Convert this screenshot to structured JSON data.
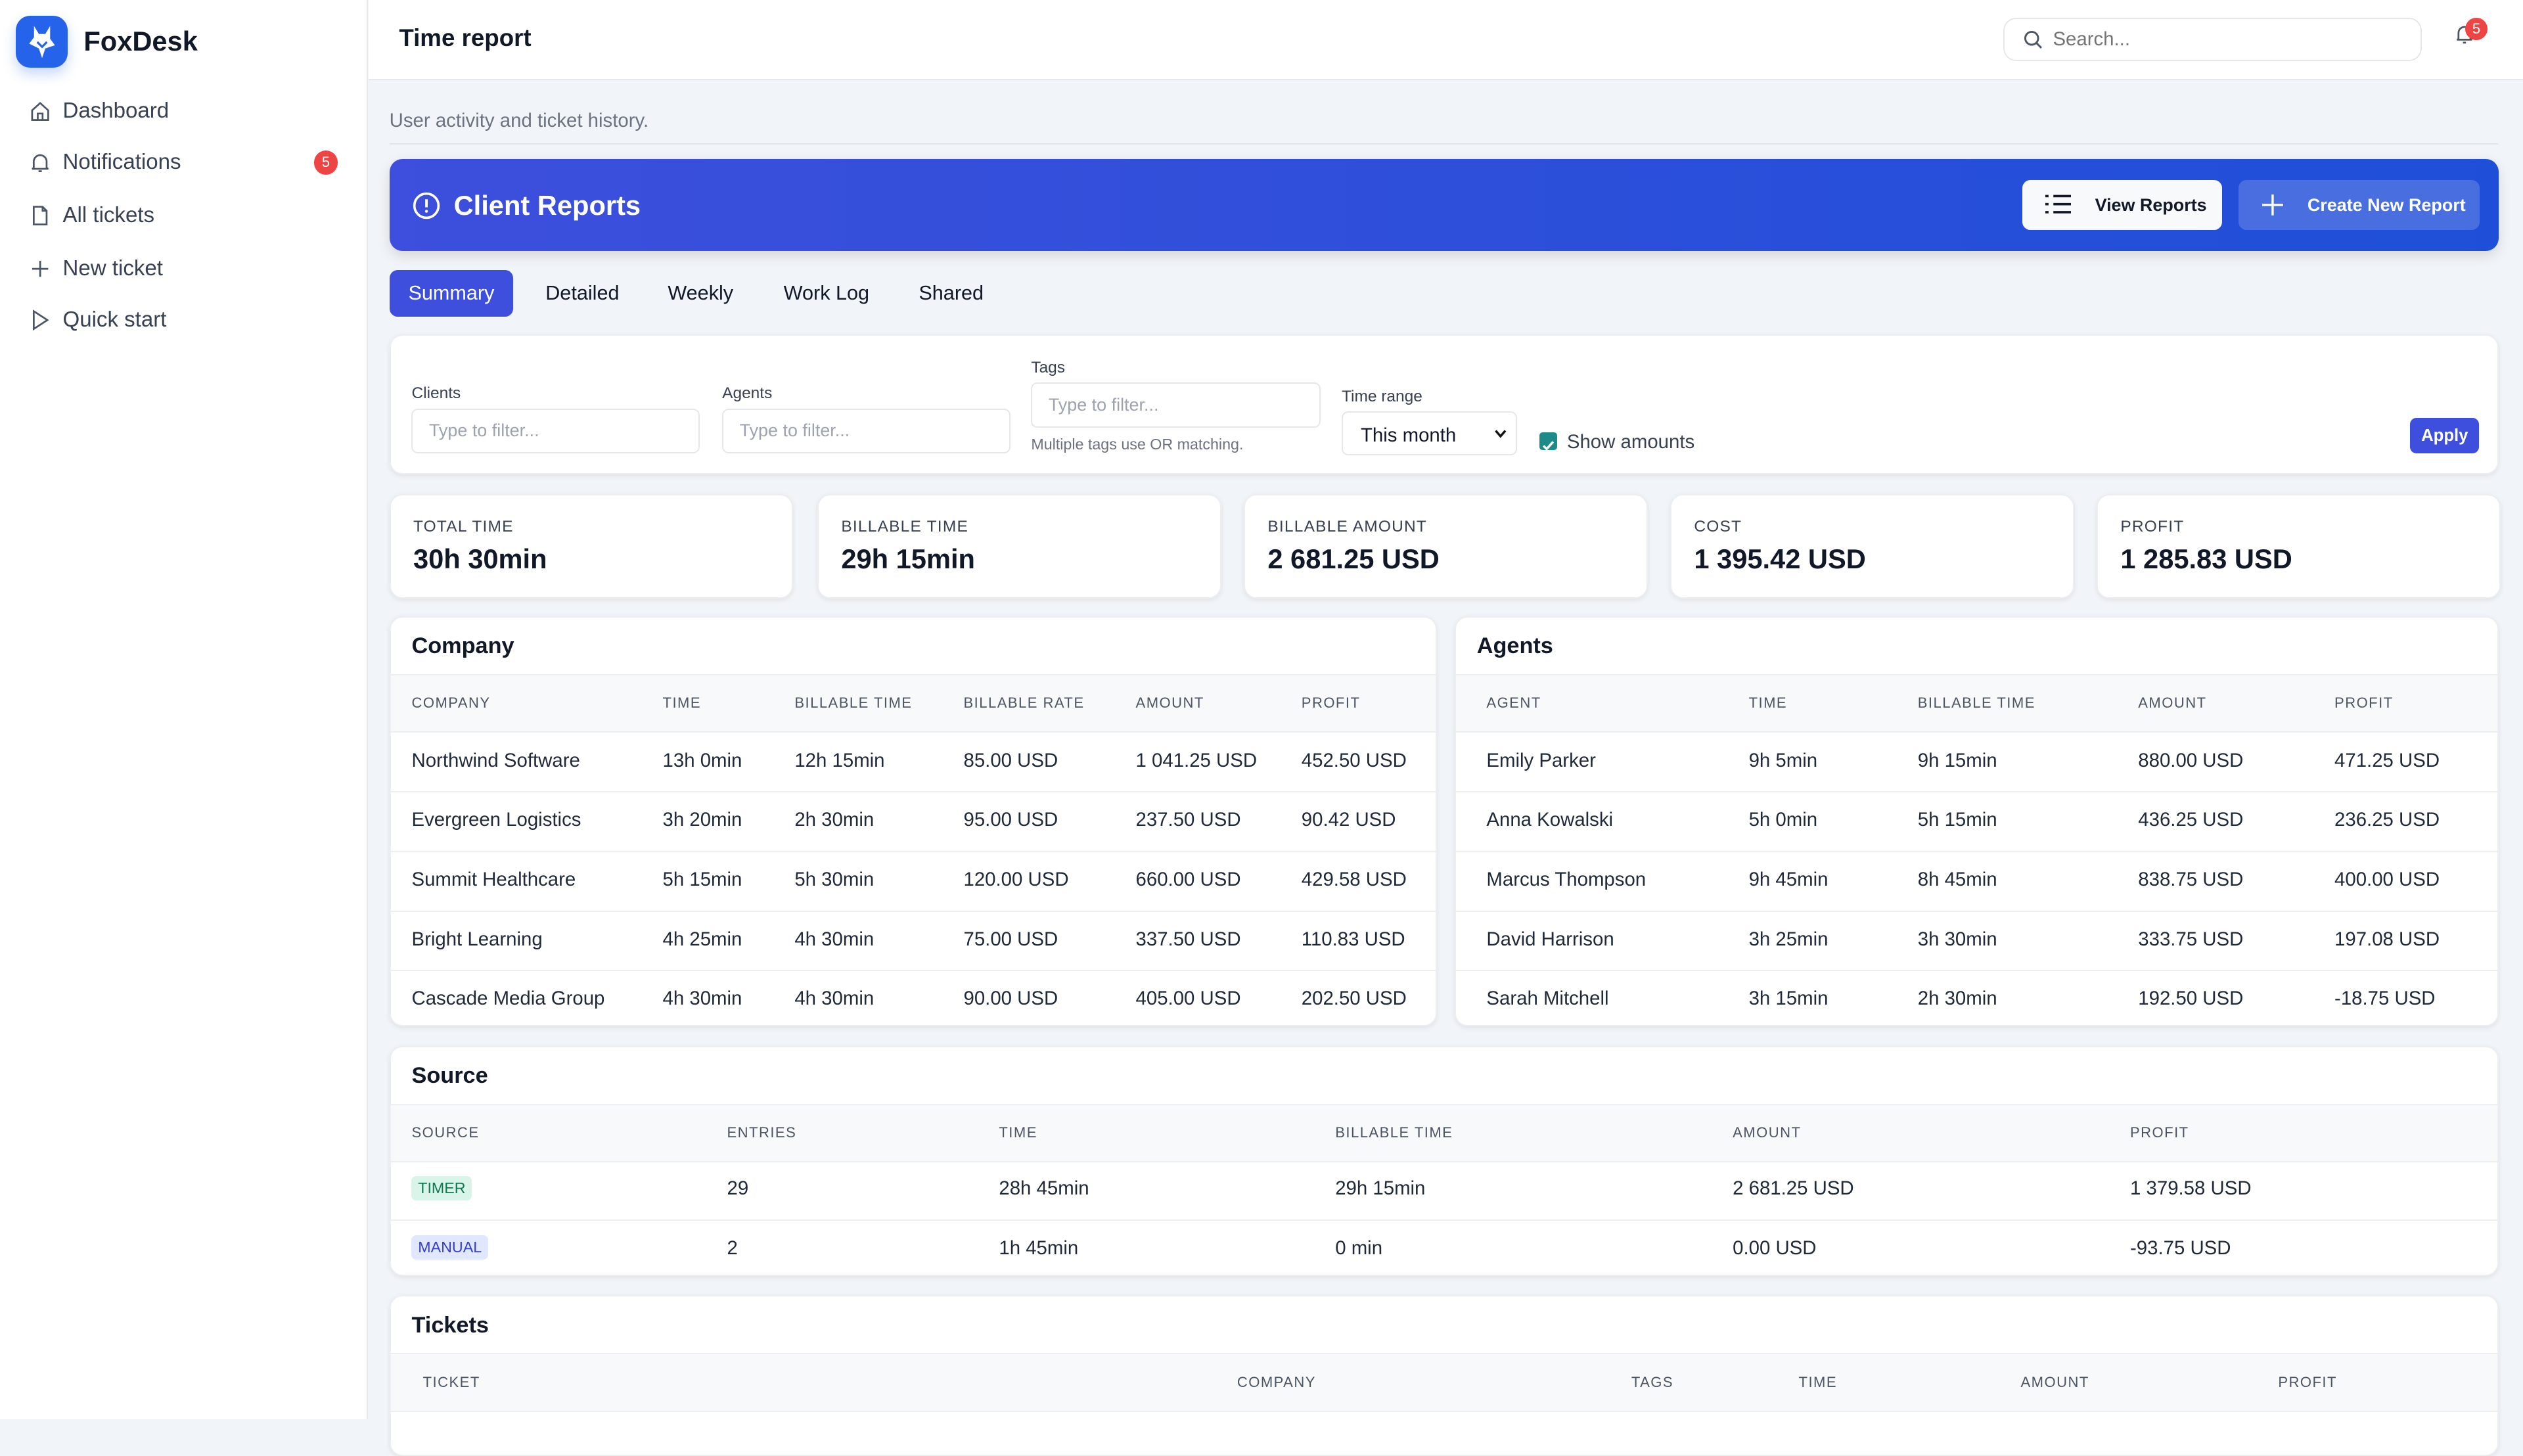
{
  "app": {
    "name": "FoxDesk"
  },
  "sidebar": {
    "items": [
      {
        "label": "Dashboard",
        "icon": "home-icon"
      },
      {
        "label": "Notifications",
        "icon": "bell-icon",
        "badge": "5"
      },
      {
        "label": "All tickets",
        "icon": "file-icon"
      },
      {
        "label": "New ticket",
        "icon": "plus-icon"
      },
      {
        "label": "Quick start",
        "icon": "play-icon"
      }
    ]
  },
  "header": {
    "title": "Time report",
    "search_placeholder": "Search...",
    "notif_count": "5"
  },
  "page": {
    "subtitle": "User activity and ticket history."
  },
  "banner": {
    "title": "Client Reports",
    "view_label": "View Reports",
    "create_label": "Create New Report"
  },
  "tabs": [
    "Summary",
    "Detailed",
    "Weekly",
    "Work Log",
    "Shared"
  ],
  "filters": {
    "clients_label": "Clients",
    "clients_placeholder": "Type to filter...",
    "agents_label": "Agents",
    "agents_placeholder": "Type to filter...",
    "tags_label": "Tags",
    "tags_placeholder": "Type to filter...",
    "tags_help": "Multiple tags use OR matching.",
    "time_range_label": "Time range",
    "time_range_value": "This month",
    "show_amounts_label": "Show amounts",
    "show_amounts_checked": true,
    "apply_label": "Apply"
  },
  "stats": [
    {
      "label": "TOTAL TIME",
      "value": "30h 30min"
    },
    {
      "label": "BILLABLE TIME",
      "value": "29h 15min"
    },
    {
      "label": "BILLABLE AMOUNT",
      "value": "2 681.25 USD"
    },
    {
      "label": "COST",
      "value": "1 395.42 USD"
    },
    {
      "label": "PROFIT",
      "value": "1 285.83 USD"
    }
  ],
  "company": {
    "title": "Company",
    "columns": [
      "COMPANY",
      "TIME",
      "BILLABLE TIME",
      "BILLABLE RATE",
      "AMOUNT",
      "PROFIT"
    ],
    "rows": [
      [
        "Northwind Software",
        "13h 0min",
        "12h 15min",
        "85.00 USD",
        "1 041.25 USD",
        "452.50 USD"
      ],
      [
        "Evergreen Logistics",
        "3h 20min",
        "2h 30min",
        "95.00 USD",
        "237.50 USD",
        "90.42 USD"
      ],
      [
        "Summit Healthcare",
        "5h 15min",
        "5h 30min",
        "120.00 USD",
        "660.00 USD",
        "429.58 USD"
      ],
      [
        "Bright Learning",
        "4h 25min",
        "4h 30min",
        "75.00 USD",
        "337.50 USD",
        "110.83 USD"
      ],
      [
        "Cascade Media Group",
        "4h 30min",
        "4h 30min",
        "90.00 USD",
        "405.00 USD",
        "202.50 USD"
      ]
    ]
  },
  "agents": {
    "title": "Agents",
    "columns": [
      "AGENT",
      "TIME",
      "BILLABLE TIME",
      "AMOUNT",
      "PROFIT"
    ],
    "rows": [
      [
        "Emily Parker",
        "9h 5min",
        "9h 15min",
        "880.00 USD",
        "471.25 USD"
      ],
      [
        "Anna Kowalski",
        "5h 0min",
        "5h 15min",
        "436.25 USD",
        "236.25 USD"
      ],
      [
        "Marcus Thompson",
        "9h 45min",
        "8h 45min",
        "838.75 USD",
        "400.00 USD"
      ],
      [
        "David Harrison",
        "3h 25min",
        "3h 30min",
        "333.75 USD",
        "197.08 USD"
      ],
      [
        "Sarah Mitchell",
        "3h 15min",
        "2h 30min",
        "192.50 USD",
        "-18.75 USD"
      ]
    ]
  },
  "source": {
    "title": "Source",
    "columns": [
      "SOURCE",
      "ENTRIES",
      "TIME",
      "BILLABLE TIME",
      "AMOUNT",
      "PROFIT"
    ],
    "rows": [
      [
        "TIMER",
        "29",
        "28h 45min",
        "29h 15min",
        "2 681.25 USD",
        "1 379.58 USD"
      ],
      [
        "MANUAL",
        "2",
        "1h 45min",
        "0 min",
        "0.00 USD",
        "-93.75 USD"
      ]
    ],
    "colors": {
      "TIMER": [
        "#d9f5ea",
        "#0f7a4f"
      ],
      "MANUAL": [
        "#e0e7ff",
        "#3740c9"
      ]
    }
  },
  "tickets": {
    "title": "Tickets",
    "columns": [
      "TICKET",
      "COMPANY",
      "TAGS",
      "TIME",
      "AMOUNT",
      "PROFIT"
    ]
  }
}
